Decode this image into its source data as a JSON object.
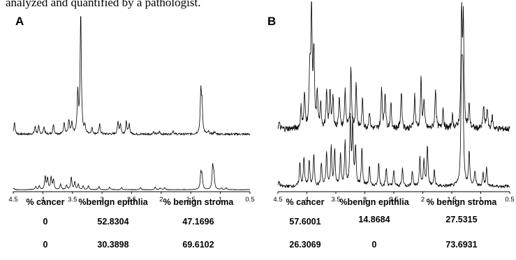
{
  "caption": "analyzed and quantified by a pathologist.",
  "chart_data": [
    {
      "panel": "A",
      "type": "line",
      "x_ticks": [
        "4.5",
        "4",
        "3.5",
        "3",
        "2.5",
        "2",
        "1.5",
        "1",
        "0.5"
      ],
      "xlim": [
        4.5,
        0.5
      ],
      "x_reversed": true,
      "table": {
        "headers": [
          "% cancer",
          "%benign epithlia",
          "% benign stroma"
        ],
        "rows": [
          [
            "0",
            "52.8304",
            "47.1696"
          ],
          [
            "0",
            "30.3898",
            "69.6102"
          ]
        ]
      },
      "series": [
        {
          "peaks": [
            [
              4.48,
              0.1
            ],
            [
              4.13,
              0.06
            ],
            [
              4.07,
              0.06
            ],
            [
              3.98,
              0.06
            ],
            [
              3.82,
              0.08
            ],
            [
              3.64,
              0.1
            ],
            [
              3.56,
              0.11
            ],
            [
              3.51,
              0.09
            ],
            [
              3.41,
              0.33
            ],
            [
              3.36,
              1.0
            ],
            [
              3.29,
              0.06
            ],
            [
              3.17,
              0.05
            ],
            [
              3.04,
              0.08
            ],
            [
              2.73,
              0.1
            ],
            [
              2.69,
              0.08
            ],
            [
              2.59,
              0.1
            ],
            [
              2.54,
              0.08
            ],
            [
              2.13,
              0.02
            ],
            [
              2.03,
              0.02
            ],
            [
              1.8,
              0.03
            ],
            [
              1.33,
              0.34
            ],
            [
              1.31,
              0.22
            ],
            [
              1.2,
              0.02
            ],
            [
              1.1,
              0.02
            ]
          ],
          "baseline": 0.02
        },
        {
          "peaks": [
            [
              4.49,
              0.04
            ],
            [
              4.12,
              0.1
            ],
            [
              4.06,
              0.12
            ],
            [
              3.96,
              0.42
            ],
            [
              3.92,
              0.36
            ],
            [
              3.86,
              0.4
            ],
            [
              3.82,
              0.3
            ],
            [
              3.7,
              0.18
            ],
            [
              3.6,
              0.14
            ],
            [
              3.52,
              0.4
            ],
            [
              3.46,
              0.24
            ],
            [
              3.4,
              0.18
            ],
            [
              3.32,
              0.12
            ],
            [
              3.23,
              0.12
            ],
            [
              3.05,
              0.1
            ],
            [
              2.87,
              0.08
            ],
            [
              2.67,
              0.07
            ],
            [
              2.35,
              0.06
            ],
            [
              2.1,
              0.08
            ],
            [
              2.02,
              0.06
            ],
            [
              1.94,
              0.06
            ],
            [
              1.33,
              0.52
            ],
            [
              1.31,
              0.4
            ],
            [
              1.13,
              0.72
            ],
            [
              1.11,
              0.45
            ],
            [
              0.98,
              0.05
            ],
            [
              0.9,
              0.06
            ]
          ],
          "baseline": 0.02
        }
      ]
    },
    {
      "panel": "B",
      "type": "line",
      "x_ticks": [
        "4.5",
        "4",
        "3.5",
        "3",
        "2.5",
        "2",
        "1.5",
        "1",
        "0.5"
      ],
      "xlim": [
        4.5,
        0.5
      ],
      "x_reversed": true,
      "table": {
        "headers": [
          "% cancer",
          "%benign epithlia",
          "% benign stroma"
        ],
        "rows": [
          [
            "57.6001",
            "14.8684",
            "27.5315"
          ],
          [
            "26.3069",
            "0",
            "73.6931"
          ]
        ]
      },
      "series": [
        {
          "peaks": [
            [
              4.48,
              0.05
            ],
            [
              4.1,
              0.16
            ],
            [
              4.04,
              0.26
            ],
            [
              3.95,
              0.44
            ],
            [
              3.92,
              1.0
            ],
            [
              3.88,
              0.58
            ],
            [
              3.82,
              0.28
            ],
            [
              3.76,
              0.18
            ],
            [
              3.66,
              0.28
            ],
            [
              3.6,
              0.3
            ],
            [
              3.55,
              0.24
            ],
            [
              3.44,
              0.26
            ],
            [
              3.34,
              0.3
            ],
            [
              3.24,
              0.48
            ],
            [
              3.15,
              0.35
            ],
            [
              3.04,
              0.22
            ],
            [
              2.92,
              0.14
            ],
            [
              2.71,
              0.32
            ],
            [
              2.65,
              0.28
            ],
            [
              2.55,
              0.2
            ],
            [
              2.37,
              0.3
            ],
            [
              2.14,
              0.26
            ],
            [
              2.03,
              0.38
            ],
            [
              1.98,
              0.22
            ],
            [
              1.78,
              0.32
            ],
            [
              1.65,
              0.16
            ],
            [
              1.49,
              0.1
            ],
            [
              1.33,
              0.92
            ],
            [
              1.3,
              0.82
            ],
            [
              1.2,
              0.18
            ],
            [
              0.95,
              0.18
            ],
            [
              0.89,
              0.16
            ],
            [
              0.8,
              0.1
            ]
          ],
          "baseline": 0.06
        },
        {
          "peaks": [
            [
              4.48,
              0.04
            ],
            [
              4.12,
              0.18
            ],
            [
              4.05,
              0.22
            ],
            [
              3.96,
              0.2
            ],
            [
              3.88,
              0.24
            ],
            [
              3.75,
              0.18
            ],
            [
              3.66,
              0.26
            ],
            [
              3.58,
              0.3
            ],
            [
              3.52,
              0.28
            ],
            [
              3.42,
              0.24
            ],
            [
              3.34,
              0.34
            ],
            [
              3.25,
              0.52
            ],
            [
              3.21,
              0.46
            ],
            [
              3.16,
              0.3
            ],
            [
              3.05,
              0.3
            ],
            [
              2.92,
              0.16
            ],
            [
              2.76,
              0.18
            ],
            [
              2.63,
              0.14
            ],
            [
              2.5,
              0.12
            ],
            [
              2.35,
              0.14
            ],
            [
              2.18,
              0.12
            ],
            [
              2.05,
              0.22
            ],
            [
              1.98,
              0.2
            ],
            [
              1.92,
              0.32
            ],
            [
              1.8,
              0.12
            ],
            [
              1.33,
              1.0
            ],
            [
              1.31,
              0.85
            ],
            [
              1.2,
              0.26
            ],
            [
              1.1,
              0.12
            ],
            [
              0.96,
              0.1
            ],
            [
              0.9,
              0.14
            ]
          ],
          "baseline": 0.03
        }
      ]
    }
  ]
}
